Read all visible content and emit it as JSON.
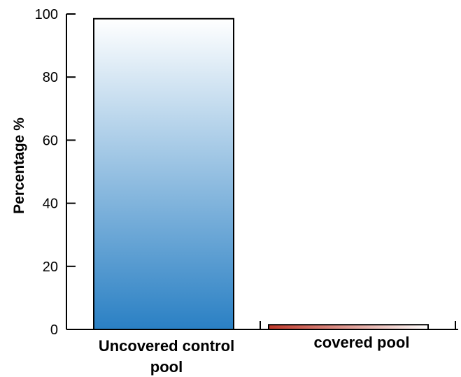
{
  "chart_data": {
    "type": "bar",
    "categories": [
      "Uncovered control pool",
      "covered pool"
    ],
    "category_lines": [
      [
        "Uncovered control",
        "pool"
      ],
      [
        "covered pool"
      ]
    ],
    "values": [
      98.5,
      1.5
    ],
    "ylabel": "Percentage %",
    "xlabel": "",
    "ylim": [
      0,
      100
    ],
    "yticks": [
      "0",
      "20",
      "40",
      "60",
      "80",
      "100"
    ],
    "grid": false,
    "colors": {
      "bar1_top": "#ffffff",
      "bar1_bottom": "#2a80c4",
      "bar2_left": "#c0392b",
      "bar2_right": "#ffffff",
      "axis": "#000000"
    }
  }
}
